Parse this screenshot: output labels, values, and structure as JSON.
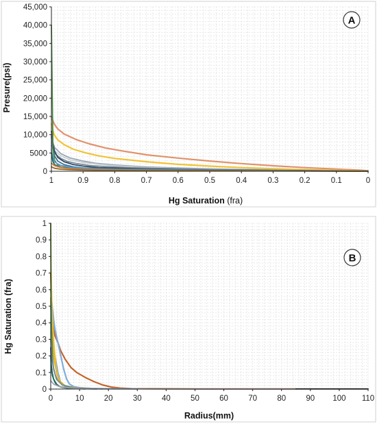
{
  "chart_data": [
    {
      "panel": "A",
      "type": "line",
      "xlabel": "Hg Saturation",
      "xlabel_unit": "(fra)",
      "ylabel": "Presure(psi)",
      "xlim": [
        1,
        0
      ],
      "ylim": [
        0,
        45000
      ],
      "x_ticks": [
        "1",
        "0.9",
        "0.8",
        "0.7",
        "0.6",
        "0.5",
        "0.4",
        "0.3",
        "0.2",
        "0.1",
        "0"
      ],
      "y_ticks": [
        "0",
        "5000",
        "10,000",
        "15,000",
        "20,000",
        "25,000",
        "30,000",
        "35,000",
        "40,000",
        "45,000"
      ],
      "grid": true,
      "series": [
        {
          "color": "#e0926a",
          "x": [
            1,
            0.995,
            0.99,
            0.98,
            0.96,
            0.92,
            0.88,
            0.83,
            0.78,
            0.7,
            0.6,
            0.5,
            0.4,
            0.3,
            0.2,
            0.1,
            0.03,
            0
          ],
          "y": [
            15000,
            13800,
            12800,
            11600,
            10200,
            8600,
            7500,
            6400,
            5600,
            4500,
            3600,
            2800,
            2100,
            1500,
            1000,
            600,
            300,
            150
          ]
        },
        {
          "color": "#f2c232",
          "x": [
            1,
            0.995,
            0.99,
            0.98,
            0.96,
            0.93,
            0.89,
            0.85,
            0.8,
            0.7,
            0.6,
            0.5,
            0.4,
            0.3,
            0.2,
            0.1,
            0
          ],
          "y": [
            13000,
            11000,
            9800,
            8600,
            7300,
            6000,
            5000,
            4200,
            3500,
            2600,
            1900,
            1400,
            1000,
            700,
            450,
            250,
            100
          ]
        },
        {
          "color": "#9aa5b0",
          "x": [
            1,
            0.99,
            0.97,
            0.94,
            0.9,
            0.86,
            0.8,
            0.7,
            0.6,
            0.5,
            0.3,
            0.1,
            0
          ],
          "y": [
            9000,
            6500,
            4800,
            3600,
            2800,
            2200,
            1700,
            1200,
            900,
            650,
            350,
            150,
            60
          ]
        },
        {
          "color": "#c8ced4",
          "x": [
            1,
            0.99,
            0.97,
            0.94,
            0.9,
            0.85,
            0.8,
            0.7,
            0.6,
            0.4,
            0.2,
            0
          ],
          "y": [
            8000,
            5600,
            4200,
            3100,
            2400,
            1900,
            1500,
            1000,
            750,
            450,
            200,
            50
          ]
        },
        {
          "color": "#7d8a96",
          "x": [
            1,
            0.99,
            0.97,
            0.95,
            0.92,
            0.88,
            0.83,
            0.75,
            0.6,
            0.4,
            0.2,
            0
          ],
          "y": [
            7000,
            4900,
            3500,
            2700,
            2100,
            1600,
            1300,
            950,
            650,
            400,
            180,
            40
          ]
        },
        {
          "color": "#2e4a63",
          "x": [
            1,
            0.995,
            0.99,
            0.98,
            0.96,
            0.93,
            0.9,
            0.85,
            0.7,
            0.5,
            0.2,
            0
          ],
          "y": [
            11000,
            7500,
            5500,
            3800,
            2600,
            1800,
            1400,
            1000,
            600,
            350,
            150,
            30
          ]
        },
        {
          "color": "#3f6e91",
          "x": [
            1,
            0.995,
            0.99,
            0.98,
            0.96,
            0.93,
            0.9,
            0.8,
            0.6,
            0.4,
            0.1,
            0
          ],
          "y": [
            9500,
            6000,
            4200,
            2800,
            1800,
            1200,
            900,
            600,
            350,
            200,
            80,
            20
          ]
        },
        {
          "color": "#4f8a4a",
          "x": [
            1,
            0.995,
            0.99,
            0.98,
            0.95,
            0.9,
            0.8,
            0.6,
            0.3,
            0
          ],
          "y": [
            40000,
            6000,
            3000,
            1800,
            1100,
            800,
            550,
            350,
            180,
            40
          ]
        },
        {
          "color": "#5b9bd5",
          "x": [
            1,
            0.995,
            0.99,
            0.97,
            0.94,
            0.9,
            0.8,
            0.6,
            0.3,
            0
          ],
          "y": [
            6000,
            3500,
            2500,
            1600,
            1100,
            800,
            550,
            330,
            160,
            30
          ]
        },
        {
          "color": "#1f6f5c",
          "x": [
            1,
            0.995,
            0.99,
            0.97,
            0.94,
            0.9,
            0.8,
            0.6,
            0.3,
            0
          ],
          "y": [
            5000,
            2600,
            1800,
            1100,
            750,
            550,
            380,
            230,
            110,
            20
          ]
        },
        {
          "color": "#e07b39",
          "x": [
            1,
            0.99,
            0.97,
            0.94,
            0.9,
            0.8,
            0.6,
            0.3,
            0
          ],
          "y": [
            2200,
            1500,
            1000,
            700,
            500,
            330,
            200,
            90,
            20
          ]
        },
        {
          "color": "#8b6a2b",
          "x": [
            1,
            0.99,
            0.97,
            0.94,
            0.9,
            0.8,
            0.5,
            0
          ],
          "y": [
            1200,
            800,
            550,
            400,
            300,
            200,
            110,
            15
          ]
        }
      ]
    },
    {
      "panel": "B",
      "type": "line",
      "xlabel": "Radius(mm)",
      "ylabel": "Hg Saturation (fra)",
      "xlim": [
        0,
        110
      ],
      "ylim": [
        0,
        1
      ],
      "x_ticks": [
        "0",
        "10",
        "20",
        "30",
        "40",
        "50",
        "60",
        "70",
        "80",
        "90",
        "100",
        "110"
      ],
      "y_ticks": [
        "0",
        "0.1",
        "0.2",
        "0.3",
        "0.4",
        "0.5",
        "0.6",
        "0.7",
        "0.8",
        "0.9",
        "1"
      ],
      "grid": true,
      "series": [
        {
          "color": "#c5632a",
          "x": [
            0,
            0.3,
            0.8,
            1.5,
            2.5,
            3.5,
            5,
            7,
            9,
            12,
            15,
            18,
            21,
            24,
            28,
            35,
            50,
            85
          ],
          "y": [
            0.7,
            0.5,
            0.38,
            0.32,
            0.28,
            0.23,
            0.18,
            0.13,
            0.1,
            0.07,
            0.045,
            0.025,
            0.012,
            0.006,
            0.003,
            0.002,
            0.001,
            0.001
          ]
        },
        {
          "color": "#7faedb",
          "x": [
            0,
            0.5,
            1,
            1.5,
            2.5,
            3.5,
            4.5,
            5.5,
            6.5,
            8,
            10,
            14,
            20,
            30
          ],
          "y": [
            0.6,
            0.5,
            0.42,
            0.36,
            0.28,
            0.2,
            0.12,
            0.06,
            0.03,
            0.015,
            0.008,
            0.004,
            0.002,
            0.001
          ]
        },
        {
          "color": "#5b9bd5",
          "x": [
            0,
            0.3,
            0.8,
            1.5,
            2.5,
            3.5,
            5,
            8,
            12,
            20
          ],
          "y": [
            0.5,
            0.38,
            0.3,
            0.2,
            0.1,
            0.04,
            0.015,
            0.006,
            0.003,
            0.001
          ]
        },
        {
          "color": "#f2c232",
          "x": [
            0,
            0.2,
            0.5,
            1,
            1.5,
            2,
            3,
            5,
            8,
            15
          ],
          "y": [
            1,
            0.7,
            0.45,
            0.3,
            0.2,
            0.12,
            0.05,
            0.02,
            0.008,
            0.002
          ]
        },
        {
          "color": "#f4d35e",
          "x": [
            0,
            0.3,
            0.8,
            1.5,
            2.5,
            3.5,
            5,
            8,
            14
          ],
          "y": [
            0.4,
            0.3,
            0.22,
            0.15,
            0.08,
            0.04,
            0.018,
            0.006,
            0.002
          ]
        },
        {
          "color": "#d9b12c",
          "x": [
            0,
            0.2,
            0.6,
            1.2,
            2,
            3,
            5,
            9,
            16
          ],
          "y": [
            0.55,
            0.4,
            0.28,
            0.18,
            0.1,
            0.05,
            0.02,
            0.008,
            0.002
          ]
        },
        {
          "color": "#4f8a4a",
          "x": [
            0,
            0.05,
            0.15,
            0.3,
            0.6,
            1,
            2,
            4,
            8,
            15
          ],
          "y": [
            1,
            0.8,
            0.55,
            0.35,
            0.2,
            0.12,
            0.06,
            0.025,
            0.008,
            0.002
          ]
        },
        {
          "color": "#7d8a96",
          "x": [
            0,
            0.3,
            0.8,
            1.5,
            2.5,
            4,
            6,
            10,
            18
          ],
          "y": [
            0.3,
            0.2,
            0.14,
            0.09,
            0.05,
            0.025,
            0.012,
            0.005,
            0.001
          ]
        },
        {
          "color": "#2e4a63",
          "x": [
            0,
            0.2,
            0.5,
            1,
            2,
            3,
            5,
            9,
            16
          ],
          "y": [
            0.25,
            0.15,
            0.1,
            0.06,
            0.03,
            0.016,
            0.008,
            0.003,
            0.001
          ]
        },
        {
          "color": "#1f6f5c",
          "x": [
            0,
            0.2,
            0.6,
            1.2,
            2,
            3.5,
            6,
            12
          ],
          "y": [
            0.2,
            0.12,
            0.08,
            0.05,
            0.025,
            0.012,
            0.005,
            0.001
          ]
        },
        {
          "color": "#9aa5b0",
          "x": [
            0,
            1,
            3,
            6,
            10,
            20,
            40,
            60,
            85
          ],
          "y": [
            0.05,
            0.03,
            0.015,
            0.008,
            0.004,
            0.002,
            0.001,
            0.001,
            0.001
          ]
        },
        {
          "color": "#222222",
          "x": [
            85,
            90,
            100,
            110
          ],
          "y": [
            0.001,
            0.001,
            0.001,
            0.001
          ]
        }
      ]
    }
  ],
  "badges": {
    "a": "A",
    "b": "B"
  }
}
